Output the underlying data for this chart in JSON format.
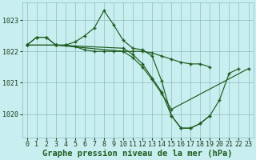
{
  "background_color": "#c8eef0",
  "grid_color": "#8dbdbd",
  "line_color": "#1e5c1e",
  "marker_color": "#1e5c1e",
  "xlabel": "Graphe pression niveau de la mer (hPa)",
  "xlabel_fontsize": 7.5,
  "tick_fontsize": 6.0,
  "ylim": [
    1019.25,
    1023.55
  ],
  "xlim": [
    -0.5,
    23.5
  ],
  "yticks": [
    1020,
    1021,
    1022,
    1023
  ],
  "xticks": [
    0,
    1,
    2,
    3,
    4,
    5,
    6,
    7,
    8,
    9,
    10,
    11,
    12,
    13,
    14,
    15,
    16,
    17,
    18,
    19,
    20,
    21,
    22,
    23
  ],
  "series": [
    {
      "x": [
        0,
        1,
        2,
        3,
        4,
        5,
        6,
        7,
        8,
        9,
        10,
        11,
        12,
        13,
        14,
        15,
        16,
        17,
        18,
        19,
        20,
        21,
        22
      ],
      "y": [
        1022.2,
        1022.45,
        1022.45,
        1022.2,
        1022.2,
        1022.3,
        1022.5,
        1022.75,
        1023.3,
        1022.85,
        1022.35,
        1022.1,
        1022.05,
        1021.85,
        1021.05,
        1019.95,
        1019.55,
        1019.55,
        1019.7,
        1019.95,
        1020.45,
        1021.3,
        1021.45
      ]
    },
    {
      "x": [
        0,
        1,
        2,
        3,
        4,
        5,
        6,
        7,
        8,
        9,
        10,
        11,
        12,
        13,
        14,
        15,
        16,
        17,
        18,
        19
      ],
      "y": [
        1022.2,
        1022.45,
        1022.45,
        1022.2,
        1022.2,
        1022.15,
        1022.05,
        1022.0,
        1022.0,
        1022.0,
        1022.0,
        1022.0,
        1022.0,
        1021.95,
        1021.85,
        1021.75,
        1021.65,
        1021.6,
        1021.6,
        1021.5
      ]
    },
    {
      "x": [
        0,
        3,
        10,
        11,
        12,
        13,
        14,
        15,
        23
      ],
      "y": [
        1022.2,
        1022.2,
        1022.0,
        1021.8,
        1021.5,
        1021.1,
        1020.65,
        1020.15,
        1021.45
      ]
    },
    {
      "x": [
        0,
        3,
        10,
        11,
        12,
        13,
        14,
        15,
        16,
        17,
        18,
        19
      ],
      "y": [
        1022.2,
        1022.2,
        1022.1,
        1021.9,
        1021.6,
        1021.15,
        1020.7,
        1019.95,
        1019.55,
        1019.55,
        1019.7,
        1019.95
      ]
    }
  ]
}
